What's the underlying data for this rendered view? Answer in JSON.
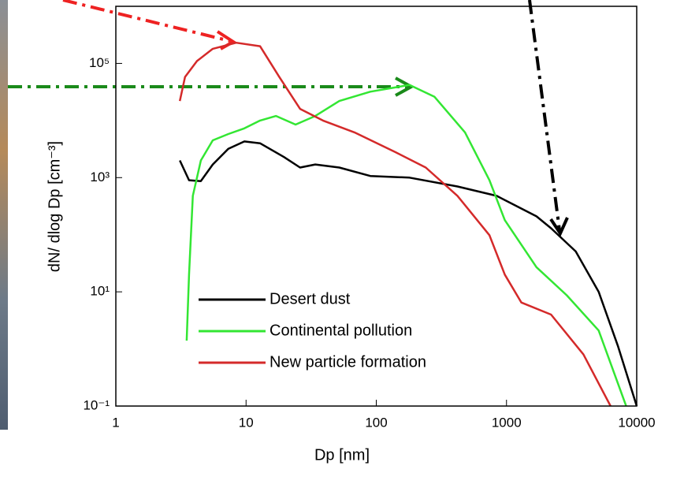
{
  "chart_data": {
    "type": "line",
    "x_label": "Dp [nm]",
    "y_label": "dN/ dlog Dp [cm⁻³]",
    "xscale": "log",
    "yscale": "log",
    "xlim": [
      1,
      10000
    ],
    "ylim": [
      0.1,
      1000000
    ],
    "xticks": [
      1,
      10,
      100,
      1000,
      10000
    ],
    "yticks": [
      {
        "value": 0.1,
        "label": "10⁻¹"
      },
      {
        "value": 10,
        "label": "10¹"
      },
      {
        "value": 1000,
        "label": "10³"
      },
      {
        "value": 100000,
        "label": "10⁵"
      }
    ],
    "legend": "lower left",
    "series": [
      {
        "name": "Desert dust",
        "color": "#000000",
        "x": [
          3.1,
          3.65,
          4.5,
          5.55,
          7.3,
          9.7,
          12.8,
          19.5,
          26,
          34,
          52,
          90,
          180,
          420,
          840,
          1700,
          2200,
          3400,
          5100,
          7200,
          10000
        ],
        "values": [
          2000,
          900,
          870,
          1700,
          3200,
          4300,
          4000,
          2300,
          1500,
          1700,
          1500,
          1070,
          1000,
          700,
          480,
          210,
          130,
          51,
          10,
          1.1,
          0.1
        ]
      },
      {
        "name": "Continental pollution",
        "color": "#33e633",
        "x": [
          3.5,
          3.65,
          3.9,
          4.5,
          5.55,
          7.3,
          9.7,
          12.8,
          17,
          24,
          34,
          52,
          90,
          180,
          280,
          480,
          740,
          970,
          1700,
          2900,
          5100,
          8300
        ],
        "values": [
          1.4,
          20,
          480,
          2000,
          4500,
          5800,
          7300,
          10000,
          12000,
          8500,
          12000,
          22000,
          32000,
          42000,
          26000,
          6200,
          900,
          180,
          27,
          8.7,
          2.1,
          0.1
        ]
      },
      {
        "name": "New particle formation",
        "color": "#d42a2a",
        "x": [
          3.1,
          3.4,
          4.2,
          5.55,
          8.4,
          12.8,
          18,
          26,
          39,
          68,
          140,
          240,
          420,
          740,
          970,
          1300,
          2200,
          3900,
          6300
        ],
        "values": [
          22000,
          58000,
          110000,
          180000,
          230000,
          200000,
          58000,
          16000,
          10000,
          6200,
          2800,
          1500,
          480,
          98,
          20,
          6.5,
          4,
          0.8,
          0.1
        ]
      }
    ]
  }
}
